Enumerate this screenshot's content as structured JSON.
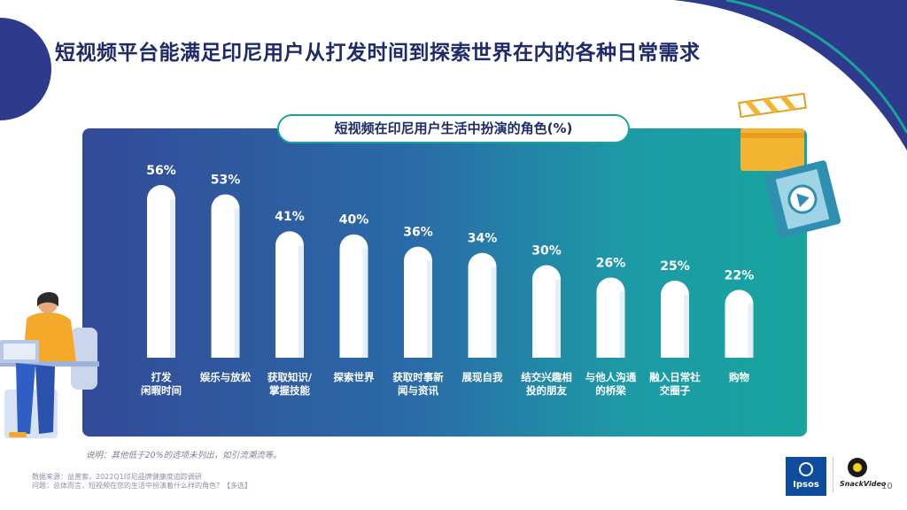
{
  "title": "短视频平台能满足印尼用户从打发时间到探索世界在内的各种日常需求",
  "chart_data": {
    "type": "bar",
    "title": "短视频在印尼用户生活中扮演的角色(%)",
    "categories": [
      [
        "打发",
        "闲暇时间"
      ],
      [
        "娱乐与放松"
      ],
      [
        "获取知识/",
        "掌握技能"
      ],
      [
        "探索世界"
      ],
      [
        "获取时事新",
        "闻与资讯"
      ],
      [
        "展现自我"
      ],
      [
        "结交兴趣相",
        "投的朋友"
      ],
      [
        "与他人沟通",
        "的桥梁"
      ],
      [
        "融入日常社",
        "交圈子"
      ],
      [
        "购物"
      ]
    ],
    "values": [
      56,
      53,
      41,
      40,
      36,
      34,
      30,
      26,
      25,
      22
    ],
    "value_labels": [
      "56%",
      "53%",
      "41%",
      "40%",
      "36%",
      "34%",
      "30%",
      "26%",
      "25%",
      "22%"
    ],
    "ylim": [
      0,
      56
    ],
    "grid": false,
    "legend": "none"
  },
  "note": "说明：其他低于20%的选项未列出，如引流潮流等。",
  "source_line1": "数据来源：益普索，2022Q1印尼品牌健康度追踪调研",
  "source_line2": "问题：总体而言，短视频在您的生活中扮演着什么样的角色？【多选】",
  "page_number": "10",
  "logos": {
    "ipsos": "Ipsos",
    "snackvideo": "SnackVideo"
  },
  "colors": {
    "title": "#1f2a6b",
    "panel_left": "#334a98",
    "panel_right": "#17a59e",
    "bar": "#ffffff",
    "accent_teal": "#1aa39a",
    "deco_navy": "#2e3a8c"
  }
}
